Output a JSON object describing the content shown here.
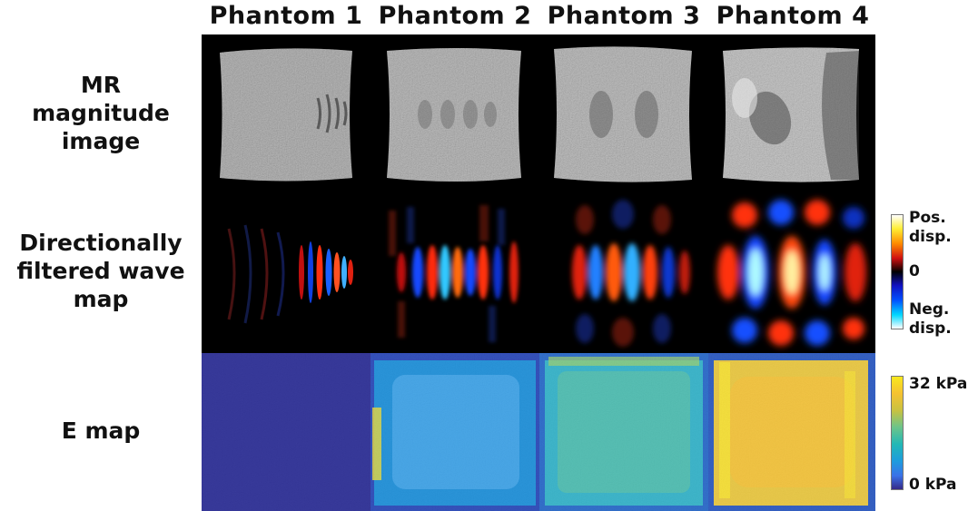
{
  "columns": [
    "Phantom 1",
    "Phantom 2",
    "Phantom 3",
    "Phantom 4"
  ],
  "rows": {
    "mr": [
      "MR",
      "magnitude",
      "image"
    ],
    "wave": [
      "Directionally",
      "filtered wave",
      "map"
    ],
    "e": "E map"
  },
  "colorbar_wave": {
    "top": "Pos.",
    "top2": "disp.",
    "mid": "0",
    "bottom": "Neg.",
    "bottom2": "disp."
  },
  "colorbar_e": {
    "top": "32 kPa",
    "bottom": "0 kPa"
  },
  "colors": {
    "wave_positive": "#ff2a10",
    "wave_negative": "#1060ff",
    "e_low": "#352a87",
    "e_high": "#f9e81d"
  }
}
